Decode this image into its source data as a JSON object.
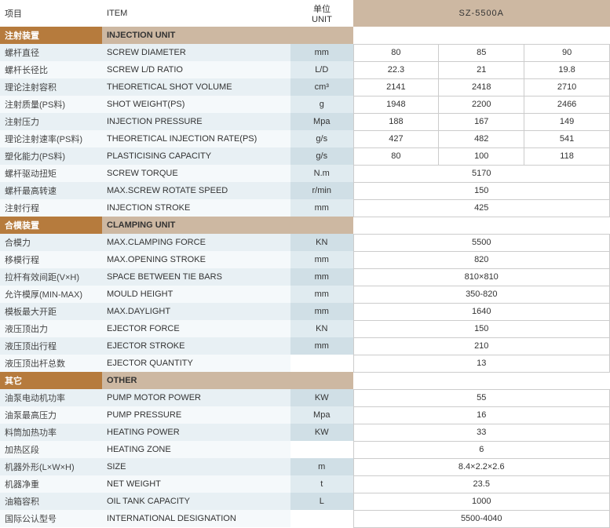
{
  "header": {
    "col1_zh": "项目",
    "col2_en": "ITEM",
    "col3_zh": "单位",
    "col3_en": "UNIT",
    "model": "SZ-5500A"
  },
  "colors": {
    "section_zh_bg": "#b67b3d",
    "section_en_bg": "#cdb8a2",
    "model_bg": "#cdb8a2",
    "row_odd_bg": "#e8f0f4",
    "row_even_bg": "#f5f9fb",
    "unit_odd_bg": "#d0dfe6",
    "unit_even_bg": "#e0ebf0",
    "val_border": "#cccccc"
  },
  "sections": [
    {
      "zh": "注射装置",
      "en": "INJECTION UNIT"
    },
    {
      "zh": "合模装置",
      "en": "CLAMPING UNIT"
    },
    {
      "zh": "其它",
      "en": "OTHER"
    }
  ],
  "rows": [
    {
      "sec": 0,
      "zh": "螺杆直径",
      "en": "SCREW DIAMETER",
      "unit": "mm",
      "vals": [
        "80",
        "85",
        "90"
      ]
    },
    {
      "sec": 0,
      "zh": "螺杆长径比",
      "en": "SCREW L/D RATIO",
      "unit": "L/D",
      "vals": [
        "22.3",
        "21",
        "19.8"
      ]
    },
    {
      "sec": 0,
      "zh": "理论注射容积",
      "en": "THEORETICAL SHOT VOLUME",
      "unit": "cm³",
      "vals": [
        "2141",
        "2418",
        "2710"
      ]
    },
    {
      "sec": 0,
      "zh": "注射质量(PS料)",
      "en": "SHOT WEIGHT(PS)",
      "unit": "g",
      "vals": [
        "1948",
        "2200",
        "2466"
      ]
    },
    {
      "sec": 0,
      "zh": "注射压力",
      "en": " INJECTION PRESSURE",
      "unit": "Mpa",
      "vals": [
        "188",
        "167",
        "149"
      ]
    },
    {
      "sec": 0,
      "zh": "理论注射速率(PS料)",
      "en": "THEORETICAL INJECTION RATE(PS)",
      "unit": "g/s",
      "vals": [
        "427",
        "482",
        "541"
      ]
    },
    {
      "sec": 0,
      "zh": "塑化能力(PS料)",
      "en": "PLASTICISING CAPACITY",
      "unit": "g/s",
      "vals": [
        "80",
        "100",
        "118"
      ]
    },
    {
      "sec": 0,
      "zh": "螺杆驱动扭矩",
      "en": "SCREW TORQUE",
      "unit": "N.m",
      "vals": [
        "5170"
      ]
    },
    {
      "sec": 0,
      "zh": "螺杆最高转速",
      "en": " MAX.SCREW ROTATE SPEED",
      "unit": "r/min",
      "vals": [
        "150"
      ]
    },
    {
      "sec": 0,
      "zh": "注射行程",
      "en": "INJECTION STROKE",
      "unit": "mm",
      "vals": [
        "425"
      ]
    },
    {
      "sec": 1,
      "zh": "合模力",
      "en": "MAX.CLAMPING FORCE",
      "unit": "KN",
      "vals": [
        "5500"
      ]
    },
    {
      "sec": 1,
      "zh": "移模行程",
      "en": "MAX.OPENING STROKE",
      "unit": "mm",
      "vals": [
        "820"
      ]
    },
    {
      "sec": 1,
      "zh": "拉杆有效间距(V×H)",
      "en": "SPACE BETWEEN TIE BARS",
      "unit": "mm",
      "vals": [
        "810×810"
      ]
    },
    {
      "sec": 1,
      "zh": "允许模厚(MIN-MAX)",
      "en": "MOULD HEIGHT",
      "unit": "mm",
      "vals": [
        "350-820"
      ]
    },
    {
      "sec": 1,
      "zh": "模板最大开距",
      "en": "MAX.DAYLIGHT",
      "unit": "mm",
      "vals": [
        "1640"
      ]
    },
    {
      "sec": 1,
      "zh": "液压顶出力",
      "en": "EJECTOR FORCE",
      "unit": "KN",
      "vals": [
        "150"
      ]
    },
    {
      "sec": 1,
      "zh": "液压顶出行程",
      "en": "EJECTOR STROKE",
      "unit": "mm",
      "vals": [
        "210"
      ]
    },
    {
      "sec": 1,
      "zh": "液压顶出杆总数",
      "en": "EJECTOR QUANTITY",
      "unit": "",
      "vals": [
        "13"
      ]
    },
    {
      "sec": 2,
      "zh": "油泵电动机功率",
      "en": "PUMP MOTOR POWER",
      "unit": "KW",
      "vals": [
        "55"
      ]
    },
    {
      "sec": 2,
      "zh": "油泵最高压力",
      "en": "PUMP PRESSURE",
      "unit": "Mpa",
      "vals": [
        "16"
      ]
    },
    {
      "sec": 2,
      "zh": "料筒加热功率",
      "en": "HEATING POWER",
      "unit": "KW",
      "vals": [
        "33"
      ]
    },
    {
      "sec": 2,
      "zh": "加热区段",
      "en": "HEATING ZONE",
      "unit": "",
      "vals": [
        "6"
      ]
    },
    {
      "sec": 2,
      "zh": "机器外形(L×W×H)",
      "en": "SIZE",
      "unit": "m",
      "vals": [
        "8.4×2.2×2.6"
      ]
    },
    {
      "sec": 2,
      "zh": "机器净重",
      "en": "NET WEIGHT",
      "unit": "t",
      "vals": [
        "23.5"
      ]
    },
    {
      "sec": 2,
      "zh": "油箱容积",
      "en": "OIL TANK CAPACITY",
      "unit": "L",
      "vals": [
        "1000"
      ]
    },
    {
      "sec": 2,
      "zh": "国际公认型号",
      "en": "INTERNATIONAL DESIGNATION",
      "unit": "",
      "vals": [
        "5500-4040"
      ]
    }
  ]
}
